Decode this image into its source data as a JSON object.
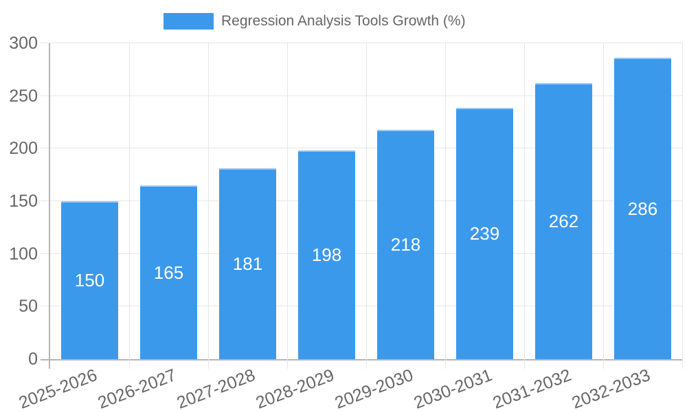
{
  "chart": {
    "legend": {
      "label": "Regression Analysis Tools Growth (%)"
    }
  },
  "colors": {
    "bar_fill": "#3B99EC",
    "bar_border_top": "#9EC9F3",
    "bar_label_text": "#FFFFFF",
    "grid_line": "#E6E6E6",
    "axis_line": "#B5B5B5",
    "tick_text": "#666666",
    "background": "#FFFFFF"
  },
  "chart_data": {
    "type": "bar",
    "title": "",
    "legend_position": "top",
    "legend_entries": [
      "Regression Analysis Tools Growth (%)"
    ],
    "categories": [
      "2025-2026",
      "2026-2027",
      "2027-2028",
      "2028-2029",
      "2029-2030",
      "2030-2031",
      "2031-2032",
      "2032-2033"
    ],
    "series": [
      {
        "name": "Regression Analysis Tools Growth (%)",
        "values": [
          150,
          165,
          181,
          198,
          218,
          239,
          262,
          286
        ]
      }
    ],
    "value_labels_shown_on_bars": true,
    "xlabel": "",
    "ylabel": "",
    "ylim": [
      0,
      300
    ],
    "yticks": [
      0,
      50,
      100,
      150,
      200,
      250,
      300
    ],
    "grid": true,
    "x_tick_rotation_deg": -21
  }
}
